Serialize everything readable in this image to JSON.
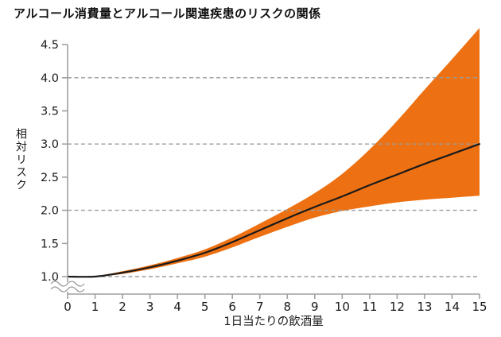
{
  "chart": {
    "title": "アルコール消費量とアルコール関連疾患のリスクの関係",
    "ylabel": "相対リスク",
    "xlabel": "1日当たりの飲酒量"
  },
  "chart_data": {
    "type": "line",
    "title": "アルコール消費量とアルコール関連疾患のリスクの関係",
    "xlabel": "1日当たりの飲酒量",
    "ylabel": "相対リスク",
    "x": [
      0,
      1,
      2,
      3,
      4,
      5,
      6,
      7,
      8,
      9,
      10,
      11,
      12,
      13,
      14,
      15
    ],
    "series": [
      {
        "name": "relative-risk-mean",
        "values": [
          1.0,
          1.0,
          1.06,
          1.14,
          1.24,
          1.36,
          1.52,
          1.7,
          1.88,
          2.05,
          2.21,
          2.38,
          2.54,
          2.7,
          2.85,
          3.0
        ]
      },
      {
        "name": "confidence-lower",
        "values": [
          1.0,
          1.0,
          1.04,
          1.11,
          1.2,
          1.3,
          1.44,
          1.6,
          1.75,
          1.89,
          1.99,
          2.06,
          2.12,
          2.16,
          2.19,
          2.22
        ]
      },
      {
        "name": "confidence-upper",
        "values": [
          1.0,
          1.01,
          1.08,
          1.17,
          1.28,
          1.41,
          1.59,
          1.8,
          2.02,
          2.26,
          2.55,
          2.92,
          3.35,
          3.82,
          4.28,
          4.75
        ]
      }
    ],
    "xlim": [
      0,
      15
    ],
    "ylim": [
      1.0,
      4.5
    ],
    "xticks": [
      0,
      1,
      2,
      3,
      4,
      5,
      6,
      7,
      8,
      9,
      10,
      11,
      12,
      13,
      14,
      15
    ],
    "yticks": [
      1.0,
      1.5,
      2.0,
      2.5,
      3.0,
      3.5,
      4.0,
      4.5
    ],
    "gridlines": {
      "y": [
        1.0,
        2.0,
        3.0,
        4.0
      ],
      "style": "dashed"
    },
    "axis_break_below_y": 1.0,
    "legend": null,
    "colors": {
      "band": "#ED7112",
      "line": "#1A1A1A",
      "grid": "#9B9B9B",
      "axis": "#A0A0A0",
      "tick_text": "#1A1A1A"
    }
  }
}
